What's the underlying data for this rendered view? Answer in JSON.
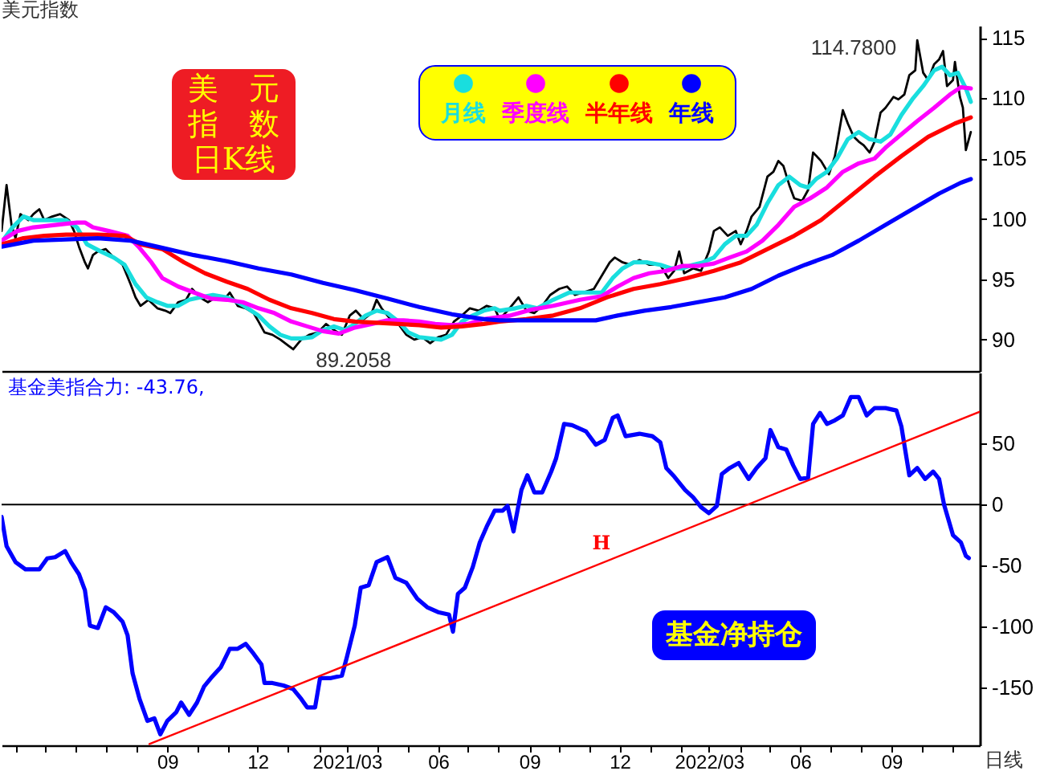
{
  "chart_data": [
    {
      "type": "line",
      "title": "美元指数",
      "xlim": [
        "2020-03-18",
        "2022-11-29"
      ],
      "ylim": [
        87.4,
        116
      ],
      "yticks": [
        90,
        95,
        100,
        105,
        110,
        115
      ],
      "tick_labels": "y",
      "legend": "top",
      "annotations": [
        "美元指数日K线",
        {
          "text": "114.7800",
          "x": "2022-09-27",
          "y": 114.78
        },
        {
          "text": "89.2058",
          "x": "2021-01-06",
          "y": 89.2058
        }
      ],
      "series": [
        {
          "color": "#000000",
          "x": [
            "2020-03-18",
            "2020-03-23",
            "2020-03-28",
            "2020-04-01",
            "2020-04-06",
            "2020-04-14",
            "2020-04-19",
            "2020-04-25",
            "2020-04-30",
            "2020-05-08",
            "2020-05-16",
            "2020-05-25",
            "2020-05-30",
            "2020-06-04",
            "2020-06-10",
            "2020-06-13",
            "2020-06-18",
            "2020-06-23",
            "2020-07-01",
            "2020-07-09",
            "2020-07-18",
            "2020-07-26",
            "2020-07-31",
            "2020-08-05",
            "2020-08-13",
            "2020-08-22",
            "2020-08-30",
            "2020-09-04",
            "2020-09-12",
            "2020-09-20",
            "2020-09-26",
            "2020-10-04",
            "2020-10-12",
            "2020-10-20",
            "2020-10-28",
            "2020-11-03",
            "2020-11-11",
            "2020-11-19",
            "2020-11-27",
            "2020-12-02",
            "2020-12-08",
            "2020-12-16",
            "2020-12-24",
            "2021-01-01",
            "2021-01-06",
            "2021-01-14",
            "2021-01-22",
            "2021-01-31",
            "2021-02-08",
            "2021-02-16",
            "2021-02-24",
            "2021-03-04",
            "2021-03-10",
            "2021-03-18",
            "2021-03-26",
            "2021-03-31",
            "2021-04-05",
            "2021-04-14",
            "2021-04-22",
            "2021-04-30",
            "2021-05-08",
            "2021-05-16",
            "2021-05-24",
            "2021-06-01",
            "2021-06-09",
            "2021-06-17",
            "2021-06-25",
            "2021-07-03",
            "2021-07-12",
            "2021-07-20",
            "2021-07-28",
            "2021-08-02",
            "2021-08-10",
            "2021-08-21",
            "2021-08-29",
            "2021-09-06",
            "2021-09-14",
            "2021-09-22",
            "2021-10-01",
            "2021-10-09",
            "2021-10-17",
            "2021-10-25",
            "2021-11-05",
            "2021-11-13",
            "2021-11-21",
            "2021-11-26",
            "2021-12-04",
            "2021-12-12",
            "2021-12-21",
            "2021-12-31",
            "2022-01-11",
            "2022-01-19",
            "2022-01-25",
            "2022-01-30",
            "2022-02-04",
            "2022-02-13",
            "2022-02-21",
            "2022-03-01",
            "2022-03-06",
            "2022-03-12",
            "2022-03-20",
            "2022-03-28",
            "2022-04-02",
            "2022-04-08",
            "2022-04-13",
            "2022-04-21",
            "2022-04-29",
            "2022-05-05",
            "2022-05-10",
            "2022-05-15",
            "2022-05-21",
            "2022-05-26",
            "2022-06-03",
            "2022-06-09",
            "2022-06-14",
            "2022-06-22",
            "2022-06-30",
            "2022-07-06",
            "2022-07-14",
            "2022-07-19",
            "2022-07-25",
            "2022-07-30",
            "2022-08-04",
            "2022-08-10",
            "2022-08-15",
            "2022-08-21",
            "2022-08-26",
            "2022-09-03",
            "2022-09-08",
            "2022-09-14",
            "2022-09-19",
            "2022-09-25",
            "2022-09-27",
            "2022-10-03",
            "2022-10-08",
            "2022-10-14",
            "2022-10-19",
            "2022-10-23",
            "2022-10-27",
            "2022-11-02",
            "2022-11-04",
            "2022-11-09",
            "2022-11-12",
            "2022-11-15",
            "2022-11-18",
            "2022-11-20"
          ],
          "values": [
            99.0,
            102.8,
            99.5,
            98.4,
            100.4,
            99.9,
            100.4,
            100.8,
            99.9,
            100.2,
            100.4,
            99.9,
            99.0,
            97.7,
            96.4,
            95.9,
            97.0,
            97.3,
            97.5,
            96.8,
            96.2,
            94.6,
            93.5,
            92.8,
            93.3,
            92.6,
            92.4,
            92.2,
            93.1,
            93.3,
            94.2,
            93.5,
            93.1,
            93.5,
            93.3,
            93.9,
            92.8,
            92.6,
            92.2,
            91.5,
            90.6,
            90.4,
            90.0,
            89.5,
            89.2,
            90.0,
            90.4,
            90.6,
            91.3,
            90.8,
            90.4,
            92.0,
            92.4,
            91.7,
            92.2,
            93.3,
            92.6,
            91.7,
            91.3,
            90.4,
            90.0,
            90.2,
            89.7,
            90.2,
            90.4,
            91.5,
            92.0,
            92.6,
            92.4,
            92.8,
            92.6,
            91.7,
            92.4,
            93.5,
            92.4,
            92.2,
            92.8,
            93.7,
            94.2,
            94.4,
            93.7,
            93.9,
            94.2,
            95.3,
            96.4,
            96.8,
            96.4,
            96.2,
            96.6,
            96.2,
            96.2,
            95.1,
            95.7,
            97.3,
            95.5,
            95.9,
            95.7,
            97.3,
            99.0,
            99.3,
            98.6,
            99.0,
            97.9,
            99.0,
            100.2,
            101.0,
            103.5,
            103.9,
            104.8,
            104.4,
            102.8,
            101.7,
            101.5,
            102.4,
            105.5,
            104.8,
            103.7,
            105.2,
            109.0,
            107.9,
            106.8,
            106.4,
            106.1,
            105.5,
            106.4,
            108.8,
            109.2,
            110.1,
            109.9,
            110.3,
            111.9,
            112.3,
            114.8,
            112.1,
            111.5,
            112.8,
            113.2,
            113.9,
            111.0,
            111.5,
            113.0,
            110.1,
            109.2,
            105.7,
            106.6,
            107.2
          ]
        },
        {
          "name": "月线",
          "color": "#19dede",
          "x": [
            "2020-03-21",
            "2020-03-29",
            "2020-04-09",
            "2020-04-19",
            "2020-05-06",
            "2020-05-22",
            "2020-06-02",
            "2020-06-12",
            "2020-06-26",
            "2020-07-09",
            "2020-07-20",
            "2020-07-31",
            "2020-08-11",
            "2020-08-22",
            "2020-09-01",
            "2020-09-12",
            "2020-09-23",
            "2020-10-04",
            "2020-10-17",
            "2020-10-31",
            "2020-11-11",
            "2020-11-21",
            "2020-12-02",
            "2020-12-13",
            "2020-12-24",
            "2021-01-04",
            "2021-01-14",
            "2021-01-25",
            "2021-02-05",
            "2021-02-16",
            "2021-02-27",
            "2021-03-09",
            "2021-03-20",
            "2021-03-31",
            "2021-04-11",
            "2021-04-22",
            "2021-05-02",
            "2021-05-13",
            "2021-05-24",
            "2021-06-04",
            "2021-06-15",
            "2021-06-25",
            "2021-07-06",
            "2021-07-17",
            "2021-07-28",
            "2021-08-02",
            "2021-08-18",
            "2021-08-29",
            "2021-09-09",
            "2021-09-25",
            "2021-10-11",
            "2021-10-28",
            "2021-11-13",
            "2021-11-24",
            "2021-12-04",
            "2021-12-15",
            "2021-12-29",
            "2022-01-11",
            "2022-01-22",
            "2022-02-02",
            "2022-02-13",
            "2022-02-23",
            "2022-03-06",
            "2022-03-17",
            "2022-03-28",
            "2022-04-08",
            "2022-04-18",
            "2022-04-29",
            "2022-05-10",
            "2022-05-21",
            "2022-06-01",
            "2022-06-09",
            "2022-06-17",
            "2022-06-28",
            "2022-07-08",
            "2022-07-19",
            "2022-07-30",
            "2022-08-10",
            "2022-08-21",
            "2022-08-31",
            "2022-09-11",
            "2022-09-22",
            "2022-10-03",
            "2022-10-14",
            "2022-10-22",
            "2022-10-30",
            "2022-11-07",
            "2022-11-15",
            "2022-11-20"
          ],
          "values": [
            98.4,
            99.3,
            100.2,
            99.9,
            99.9,
            99.9,
            99.3,
            97.9,
            97.3,
            96.8,
            96.2,
            94.6,
            93.5,
            93.1,
            92.8,
            92.8,
            93.3,
            93.5,
            93.7,
            93.5,
            93.1,
            92.6,
            92.0,
            91.1,
            90.4,
            90.1,
            90.1,
            90.2,
            90.8,
            91.1,
            90.8,
            91.3,
            92.0,
            92.4,
            92.2,
            91.5,
            90.6,
            90.2,
            90.1,
            90.0,
            90.4,
            91.5,
            92.0,
            92.4,
            92.6,
            92.4,
            92.6,
            92.8,
            92.6,
            93.3,
            93.9,
            93.9,
            93.9,
            95.1,
            95.9,
            96.4,
            96.4,
            96.2,
            95.9,
            95.9,
            96.2,
            96.4,
            96.8,
            97.9,
            98.6,
            98.6,
            99.5,
            101.3,
            102.8,
            103.5,
            102.8,
            102.6,
            103.3,
            103.9,
            105.0,
            106.6,
            107.2,
            106.6,
            106.4,
            107.0,
            108.6,
            109.9,
            111.0,
            112.3,
            112.6,
            111.9,
            112.1,
            110.8,
            109.7
          ]
        },
        {
          "name": "季度线",
          "color": "#ff00ff",
          "x": [
            "2020-03-18",
            "2020-04-03",
            "2020-04-19",
            "2020-05-11",
            "2020-06-02",
            "2020-06-10",
            "2020-06-18",
            "2020-07-04",
            "2020-07-23",
            "2020-08-03",
            "2020-08-16",
            "2020-08-27",
            "2020-09-12",
            "2020-09-28",
            "2020-10-15",
            "2020-10-31",
            "2020-11-16",
            "2020-12-02",
            "2020-12-18",
            "2021-01-04",
            "2021-01-20",
            "2021-02-05",
            "2021-02-21",
            "2021-03-09",
            "2021-03-26",
            "2021-04-11",
            "2021-04-27",
            "2021-05-13",
            "2021-05-29",
            "2021-06-15",
            "2021-07-01",
            "2021-07-17",
            "2021-08-13",
            "2021-09-04",
            "2021-09-25",
            "2021-10-22",
            "2021-11-13",
            "2021-11-29",
            "2021-12-15",
            "2021-12-31",
            "2022-01-17",
            "2022-02-02",
            "2022-02-18",
            "2022-03-06",
            "2022-03-22",
            "2022-04-08",
            "2022-04-24",
            "2022-05-10",
            "2022-05-26",
            "2022-06-11",
            "2022-06-28",
            "2022-07-14",
            "2022-07-30",
            "2022-08-15",
            "2022-08-26",
            "2022-09-11",
            "2022-09-27",
            "2022-10-14",
            "2022-10-30",
            "2022-11-10",
            "2022-11-20"
          ],
          "values": [
            98.2,
            99.0,
            99.3,
            99.5,
            99.7,
            99.7,
            99.3,
            99.0,
            98.6,
            97.7,
            96.4,
            95.1,
            94.4,
            93.9,
            93.4,
            93.3,
            93.1,
            92.6,
            92.2,
            91.5,
            91.1,
            90.7,
            90.5,
            91.0,
            91.3,
            91.6,
            91.6,
            91.5,
            91.3,
            91.2,
            91.3,
            91.7,
            92.0,
            92.5,
            92.8,
            93.3,
            93.6,
            94.4,
            95.1,
            95.5,
            95.7,
            96.1,
            96.1,
            96.3,
            96.8,
            97.3,
            98.2,
            99.5,
            101.0,
            101.7,
            102.6,
            103.9,
            104.6,
            105.0,
            105.9,
            107.0,
            108.1,
            109.2,
            110.3,
            110.9,
            110.8
          ]
        },
        {
          "name": "半年线",
          "color": "#ff0000",
          "x": [
            "2020-03-18",
            "2020-04-09",
            "2020-04-30",
            "2020-05-22",
            "2020-06-23",
            "2020-07-20",
            "2020-08-05",
            "2020-08-27",
            "2020-09-18",
            "2020-10-09",
            "2020-10-31",
            "2020-11-21",
            "2020-12-13",
            "2021-01-04",
            "2021-01-25",
            "2021-02-16",
            "2021-03-09",
            "2021-03-31",
            "2021-04-22",
            "2021-05-13",
            "2021-06-04",
            "2021-06-25",
            "2021-07-17",
            "2021-08-02",
            "2021-08-29",
            "2021-09-25",
            "2021-10-22",
            "2021-11-18",
            "2021-12-15",
            "2022-01-11",
            "2022-02-07",
            "2022-03-06",
            "2022-04-02",
            "2022-04-29",
            "2022-05-26",
            "2022-06-22",
            "2022-07-19",
            "2022-08-15",
            "2022-09-11",
            "2022-10-08",
            "2022-11-04",
            "2022-11-20"
          ],
          "values": [
            97.9,
            98.4,
            98.6,
            98.7,
            98.7,
            98.6,
            97.9,
            97.5,
            96.4,
            95.5,
            94.8,
            94.2,
            93.3,
            92.6,
            92.2,
            91.7,
            91.5,
            91.4,
            91.3,
            91.2,
            91.0,
            91.1,
            91.3,
            91.5,
            91.7,
            92.0,
            92.6,
            93.5,
            94.2,
            94.6,
            95.1,
            95.7,
            96.4,
            97.5,
            98.6,
            99.9,
            101.7,
            103.5,
            105.2,
            106.8,
            107.9,
            108.4
          ]
        },
        {
          "name": "年线",
          "color": "#0000ff",
          "x": [
            "2020-03-18",
            "2020-04-19",
            "2020-05-22",
            "2020-06-23",
            "2020-07-26",
            "2020-08-27",
            "2020-09-28",
            "2020-10-31",
            "2020-12-02",
            "2021-01-04",
            "2021-02-05",
            "2021-03-09",
            "2021-04-11",
            "2021-05-13",
            "2021-06-15",
            "2021-07-17",
            "2021-08-02",
            "2021-09-04",
            "2021-10-06",
            "2021-11-07",
            "2021-11-29",
            "2021-12-26",
            "2022-01-22",
            "2022-02-18",
            "2022-03-17",
            "2022-04-13",
            "2022-05-10",
            "2022-06-06",
            "2022-07-03",
            "2022-07-30",
            "2022-08-26",
            "2022-09-22",
            "2022-10-19",
            "2022-11-10",
            "2022-11-20"
          ],
          "values": [
            97.7,
            98.2,
            98.3,
            98.4,
            98.2,
            97.6,
            97.0,
            96.5,
            95.9,
            95.4,
            94.7,
            94.1,
            93.4,
            92.7,
            92.1,
            91.7,
            91.6,
            91.6,
            91.6,
            91.6,
            92.0,
            92.4,
            92.7,
            93.1,
            93.5,
            94.2,
            95.3,
            96.2,
            97.0,
            98.2,
            99.5,
            100.8,
            102.1,
            103.0,
            103.3
          ]
        }
      ]
    },
    {
      "type": "line",
      "title": "基金美指合力: -43.76,",
      "xlim": [
        "2020-03-18",
        "2022-11-29"
      ],
      "xticks": [
        {
          "value": "2020-04-01",
          "label": null
        },
        {
          "value": "2020-05-01",
          "label": null
        },
        {
          "value": "2020-06-01",
          "label": null
        },
        {
          "value": "2020-07-01",
          "label": null
        },
        {
          "value": "2020-08-01",
          "label": null
        },
        {
          "value": "2020-09-01",
          "label": "09"
        },
        {
          "value": "2020-10-01",
          "label": null
        },
        {
          "value": "2020-11-01",
          "label": null
        },
        {
          "value": "2020-12-01",
          "label": "12"
        },
        {
          "value": "2021-01-01",
          "label": null
        },
        {
          "value": "2021-02-01",
          "label": null
        },
        {
          "value": "2021-03-01",
          "label": "2021/03"
        },
        {
          "value": "2021-04-01",
          "label": null
        },
        {
          "value": "2021-05-01",
          "label": null
        },
        {
          "value": "2021-06-01",
          "label": "06"
        },
        {
          "value": "2021-07-01",
          "label": null
        },
        {
          "value": "2021-08-01",
          "label": null
        },
        {
          "value": "2021-09-01",
          "label": "09"
        },
        {
          "value": "2021-10-01",
          "label": null
        },
        {
          "value": "2021-11-01",
          "label": null
        },
        {
          "value": "2021-12-01",
          "label": "12"
        },
        {
          "value": "2022-01-01",
          "label": null
        },
        {
          "value": "2022-02-01",
          "label": null
        },
        {
          "value": "2022-03-01",
          "label": "2022/03"
        },
        {
          "value": "2022-04-01",
          "label": null
        },
        {
          "value": "2022-05-01",
          "label": null
        },
        {
          "value": "2022-06-01",
          "label": "06"
        },
        {
          "value": "2022-07-01",
          "label": null
        },
        {
          "value": "2022-08-01",
          "label": null
        },
        {
          "value": "2022-09-01",
          "label": "09"
        },
        {
          "value": "2022-10-01",
          "label": null
        },
        {
          "value": "2022-11-01",
          "label": null
        }
      ],
      "ylim": [
        -197,
        108
      ],
      "yticks": [
        -150,
        -100,
        -50,
        0,
        50
      ],
      "ref_lines": [
        {
          "axis": "y",
          "value": 0,
          "color": "#000000"
        }
      ],
      "annotations": [
        "基金净持仓",
        {
          "text": "H",
          "x": "2021-11-19",
          "y": -47
        },
        "日线"
      ],
      "series": [
        {
          "color": "#0000ff",
          "x": [
            "2020-03-18",
            "2020-03-23",
            "2020-04-01",
            "2020-04-11",
            "2020-04-25",
            "2020-05-03",
            "2020-05-11",
            "2020-05-21",
            "2020-05-27",
            "2020-06-04",
            "2020-06-10",
            "2020-06-15",
            "2020-06-23",
            "2020-07-01",
            "2020-07-09",
            "2020-07-18",
            "2020-07-23",
            "2020-07-28",
            "2020-08-04",
            "2020-08-12",
            "2020-08-19",
            "2020-08-25",
            "2020-09-01",
            "2020-09-10",
            "2020-09-15",
            "2020-09-23",
            "2020-10-01",
            "2020-10-08",
            "2020-10-15",
            "2020-10-25",
            "2020-11-03",
            "2020-11-11",
            "2020-11-19",
            "2020-11-27",
            "2020-12-05",
            "2020-12-08",
            "2020-12-16",
            "2020-12-27",
            "2021-01-06",
            "2021-01-14",
            "2021-01-20",
            "2021-01-28",
            "2021-02-02",
            "2021-02-13",
            "2021-02-24",
            "2021-03-01",
            "2021-03-09",
            "2021-03-15",
            "2021-03-23",
            "2021-03-31",
            "2021-04-11",
            "2021-04-19",
            "2021-04-30",
            "2021-05-11",
            "2021-05-21",
            "2021-06-01",
            "2021-06-12",
            "2021-06-16",
            "2021-06-21",
            "2021-06-28",
            "2021-07-06",
            "2021-07-13",
            "2021-07-20",
            "2021-07-28",
            "2021-08-05",
            "2021-08-10",
            "2021-08-16",
            "2021-08-24",
            "2021-08-30",
            "2021-09-06",
            "2021-09-14",
            "2021-09-23",
            "2021-09-28",
            "2021-10-06",
            "2021-10-14",
            "2021-10-28",
            "2021-11-07",
            "2021-11-16",
            "2021-11-24",
            "2021-11-29",
            "2021-12-07",
            "2021-12-21",
            "2022-01-03",
            "2022-01-11",
            "2022-01-17",
            "2022-01-25",
            "2022-02-05",
            "2022-02-13",
            "2022-02-21",
            "2022-03-01",
            "2022-03-09",
            "2022-03-14",
            "2022-03-22",
            "2022-03-31",
            "2022-04-10",
            "2022-04-18",
            "2022-04-27",
            "2022-05-02",
            "2022-05-10",
            "2022-05-18",
            "2022-05-25",
            "2022-06-01",
            "2022-06-09",
            "2022-06-14",
            "2022-06-21",
            "2022-06-28",
            "2022-07-06",
            "2022-07-14",
            "2022-07-22",
            "2022-07-30",
            "2022-08-07",
            "2022-08-15",
            "2022-08-26",
            "2022-09-06",
            "2022-09-11",
            "2022-09-19",
            "2022-09-27",
            "2022-10-05",
            "2022-10-13",
            "2022-10-19",
            "2022-10-24",
            "2022-11-02",
            "2022-11-10",
            "2022-11-15",
            "2022-11-18"
          ],
          "values": [
            -10,
            -34,
            -47,
            -53,
            -53,
            -44,
            -43,
            -38,
            -47,
            -57,
            -70,
            -99,
            -101,
            -84,
            -88,
            -96,
            -107,
            -138,
            -159,
            -177,
            -175,
            -188,
            -177,
            -170,
            -162,
            -172,
            -162,
            -149,
            -142,
            -133,
            -118,
            -118,
            -114,
            -122,
            -131,
            -146,
            -146,
            -148,
            -151,
            -159,
            -166,
            -166,
            -142,
            -142,
            -140,
            -125,
            -99,
            -68,
            -66,
            -47,
            -43,
            -60,
            -64,
            -77,
            -84,
            -88,
            -90,
            -104,
            -73,
            -68,
            -51,
            -31,
            -18,
            -5,
            -5,
            -1,
            -22,
            12,
            24,
            10,
            10,
            27,
            38,
            66,
            65,
            60,
            49,
            53,
            71,
            73,
            56,
            58,
            56,
            51,
            30,
            23,
            12,
            6,
            -2,
            -7,
            -1,
            25,
            30,
            34,
            21,
            30,
            38,
            61,
            47,
            45,
            32,
            21,
            22,
            66,
            75,
            66,
            69,
            73,
            88,
            88,
            73,
            79,
            79,
            77,
            64,
            24,
            30,
            21,
            27,
            21,
            0,
            -25,
            -31,
            -42,
            -43.76
          ]
        },
        {
          "type": "line",
          "color": "#ff0000",
          "x": [
            "2020-08-14",
            "2022-11-29"
          ],
          "values": [
            -196,
            76
          ]
        }
      ]
    }
  ]
}
